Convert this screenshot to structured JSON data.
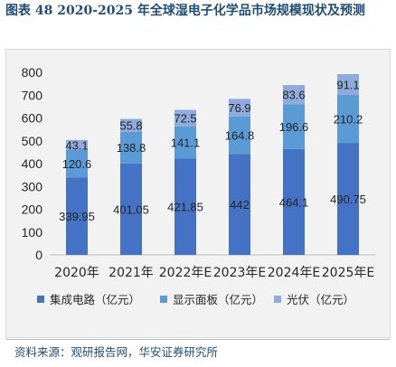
{
  "header": {
    "title": "图表 48 2020-2025 年全球湿电子化学品市场规模现状及预测"
  },
  "chart_data": {
    "type": "bar",
    "stacked": true,
    "categories": [
      "2020年",
      "2021年",
      "2022年E",
      "2023年E",
      "2024年E",
      "2025年E"
    ],
    "series": [
      {
        "name": "集成电路（亿元）",
        "color": "#4472c4",
        "values": [
          339.95,
          401.05,
          421.85,
          442,
          464.1,
          490.75
        ]
      },
      {
        "name": "显示面板（亿元）",
        "color": "#5b9bd5",
        "values": [
          120.6,
          138.8,
          141.1,
          164.8,
          196.6,
          210.2
        ]
      },
      {
        "name": "光伏（亿元）",
        "color": "#8faadc",
        "values": [
          43.1,
          55.8,
          72.5,
          76.9,
          83.6,
          91.1
        ]
      }
    ],
    "data_labels": [
      [
        "339.95",
        "401.05",
        "421.85",
        "442",
        "464.1",
        "490.75"
      ],
      [
        "120.6",
        "138.8",
        "141.1",
        "164.8",
        "196.6",
        "210.2"
      ],
      [
        "43.1",
        "55.8",
        "72.5",
        "76.9",
        "83.6",
        "91.1"
      ]
    ],
    "yticks": [
      "0",
      "100",
      "200",
      "300",
      "400",
      "500",
      "600",
      "700",
      "800"
    ],
    "ylim": [
      0,
      800
    ],
    "legend_position": "bottom",
    "grid": false
  },
  "footer": {
    "source": "资料来源：观研报告网，华安证券研究所"
  }
}
